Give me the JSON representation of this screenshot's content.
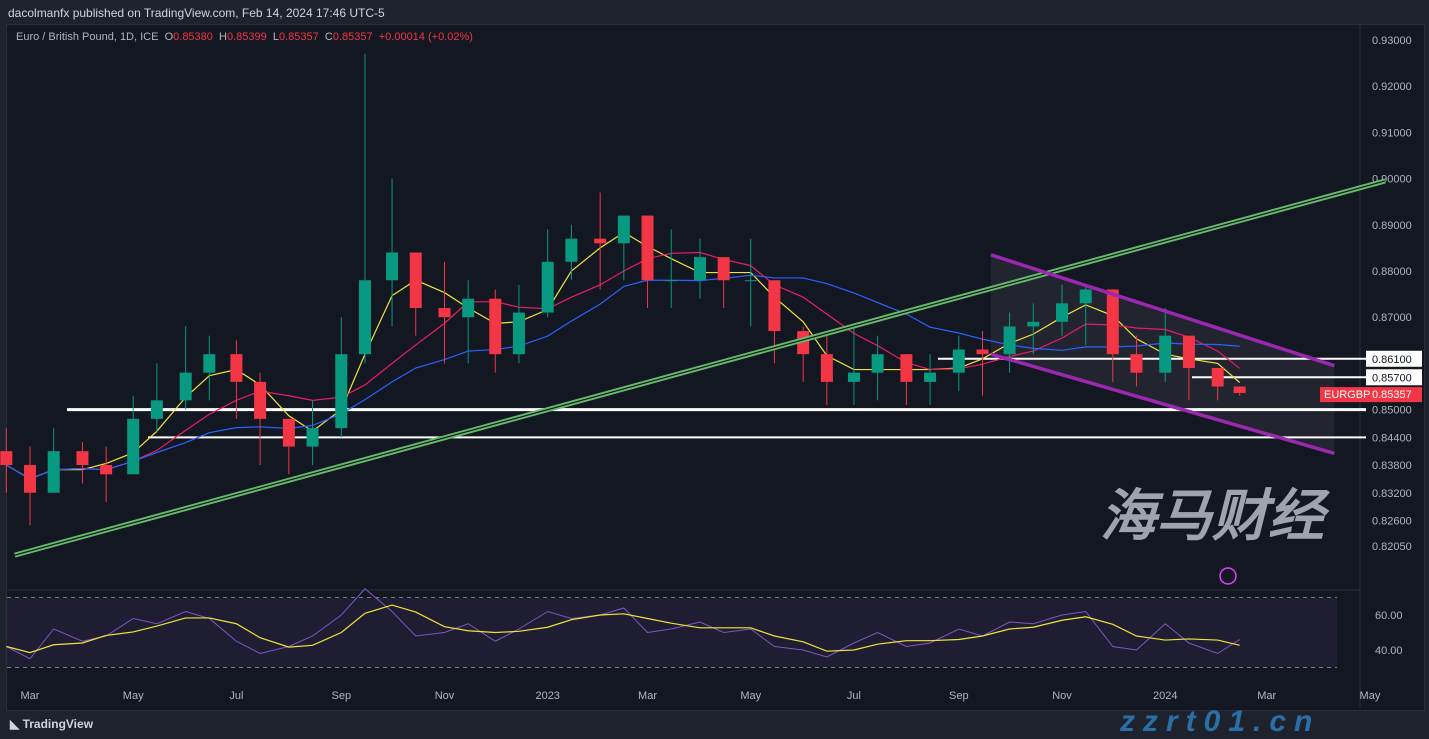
{
  "header": {
    "published": "dacolmanfx published on TradingView.com, Feb 14, 2024 17:46 UTC-5",
    "symbol": "Euro / British Pound, 1D, ICE",
    "o_label": "O",
    "o": "0.85380",
    "h_label": "H",
    "h": "0.85399",
    "l_label": "L",
    "l": "0.85357",
    "c_label": "C",
    "c": "0.85357",
    "change": "+0.00014 (+0.02%)"
  },
  "footer": {
    "brand": "TradingView"
  },
  "watermark": {
    "cn": "海马财经",
    "url": "zzrt01.cn"
  },
  "chart_data": {
    "type": "candlestick",
    "symbol_tag": "EURGBP",
    "last_price": "0.85357",
    "colors": {
      "up": "#089981",
      "down": "#f23645",
      "ma_fast": "#f2e33c",
      "ma_mid": "#e91e63",
      "ma_slow": "#2962ff",
      "trend": "#66bb6a",
      "channel": "#9c27b0",
      "rsi": "#7e57c2"
    },
    "ylim": [
      0.82,
      0.93
    ],
    "y_ticks": [
      "0.93000",
      "0.92000",
      "0.91000",
      "0.90000",
      "0.89000",
      "0.88000",
      "0.87000",
      "0.85000",
      "0.84400",
      "0.83800",
      "0.83200",
      "0.82600",
      "0.82050"
    ],
    "x_ticks": [
      [
        "Mar",
        "2022-03-01"
      ],
      [
        "May",
        "2022-05-01"
      ],
      [
        "Jul",
        "2022-07-01"
      ],
      [
        "Sep",
        "2022-09-01"
      ],
      [
        "Nov",
        "2022-11-01"
      ],
      [
        "2023",
        "2023-01-01"
      ],
      [
        "Mar",
        "2023-03-01"
      ],
      [
        "May",
        "2023-05-01"
      ],
      [
        "Jul",
        "2023-07-01"
      ],
      [
        "Sep",
        "2023-09-01"
      ],
      [
        "Nov",
        "2023-11-01"
      ],
      [
        "2024",
        "2024-01-01"
      ],
      [
        "Mar",
        "2024-03-01"
      ],
      [
        "May",
        "2024-05-01"
      ]
    ],
    "dates": [
      "2022-02-15",
      "2022-03-01",
      "2022-03-15",
      "2022-04-01",
      "2022-04-15",
      "2022-05-01",
      "2022-05-15",
      "2022-06-01",
      "2022-06-15",
      "2022-07-01",
      "2022-07-15",
      "2022-08-01",
      "2022-08-15",
      "2022-09-01",
      "2022-09-15",
      "2022-10-01",
      "2022-10-15",
      "2022-11-01",
      "2022-11-15",
      "2022-12-01",
      "2022-12-15",
      "2023-01-01",
      "2023-01-15",
      "2023-02-01",
      "2023-02-15",
      "2023-03-01",
      "2023-03-15",
      "2023-04-01",
      "2023-04-15",
      "2023-05-01",
      "2023-05-15",
      "2023-06-01",
      "2023-06-15",
      "2023-07-01",
      "2023-07-15",
      "2023-08-01",
      "2023-08-15",
      "2023-09-01",
      "2023-09-15",
      "2023-10-01",
      "2023-10-15",
      "2023-11-01",
      "2023-11-15",
      "2023-12-01",
      "2023-12-15",
      "2024-01-01",
      "2024-01-15",
      "2024-02-01",
      "2024-02-14"
    ],
    "close": [
      0.838,
      0.832,
      0.841,
      0.838,
      0.836,
      0.848,
      0.852,
      0.858,
      0.862,
      0.856,
      0.848,
      0.842,
      0.846,
      0.862,
      0.878,
      0.884,
      0.872,
      0.87,
      0.874,
      0.862,
      0.871,
      0.882,
      0.887,
      0.886,
      0.892,
      0.878,
      0.878,
      0.883,
      0.878,
      0.878,
      0.867,
      0.862,
      0.856,
      0.858,
      0.862,
      0.856,
      0.858,
      0.863,
      0.862,
      0.868,
      0.869,
      0.873,
      0.876,
      0.862,
      0.858,
      0.866,
      0.859,
      0.855,
      0.8536
    ],
    "high": [
      0.846,
      0.842,
      0.846,
      0.843,
      0.842,
      0.853,
      0.86,
      0.868,
      0.866,
      0.865,
      0.858,
      0.848,
      0.852,
      0.87,
      0.927,
      0.9,
      0.884,
      0.882,
      0.878,
      0.876,
      0.877,
      0.889,
      0.89,
      0.897,
      0.892,
      0.89,
      0.889,
      0.887,
      0.883,
      0.887,
      0.872,
      0.868,
      0.866,
      0.868,
      0.866,
      0.862,
      0.862,
      0.866,
      0.867,
      0.871,
      0.873,
      0.877,
      0.877,
      0.87,
      0.866,
      0.872,
      0.864,
      0.858,
      0.854
    ],
    "low": [
      0.832,
      0.825,
      0.832,
      0.834,
      0.83,
      0.836,
      0.845,
      0.85,
      0.852,
      0.848,
      0.838,
      0.836,
      0.838,
      0.844,
      0.86,
      0.868,
      0.866,
      0.86,
      0.86,
      0.858,
      0.86,
      0.87,
      0.878,
      0.876,
      0.878,
      0.872,
      0.872,
      0.874,
      0.872,
      0.868,
      0.86,
      0.856,
      0.851,
      0.851,
      0.852,
      0.851,
      0.851,
      0.854,
      0.853,
      0.858,
      0.862,
      0.866,
      0.864,
      0.856,
      0.855,
      0.856,
      0.852,
      0.852,
      0.853
    ],
    "rsi": [
      42,
      35,
      52,
      45,
      48,
      58,
      55,
      62,
      58,
      45,
      38,
      42,
      48,
      60,
      75,
      62,
      48,
      50,
      55,
      45,
      52,
      62,
      58,
      60,
      64,
      50,
      52,
      56,
      50,
      52,
      42,
      40,
      36,
      44,
      50,
      42,
      44,
      52,
      48,
      56,
      55,
      60,
      62,
      42,
      40,
      55,
      44,
      38,
      46
    ],
    "rsi_ticks": [
      "60.00",
      "40.00"
    ],
    "levels": [
      0.861,
      0.857,
      0.85,
      0.844
    ],
    "level_labels": [
      "0.86100",
      "0.85700"
    ],
    "trendline": [
      [
        "2022-02-20",
        0.8185
      ],
      [
        "2024-05-10",
        0.8995
      ]
    ],
    "channel_upper": [
      [
        "2023-09-20",
        0.8835
      ],
      [
        "2024-04-10",
        0.8595
      ]
    ],
    "channel_lower": [
      [
        "2023-09-20",
        0.862
      ],
      [
        "2024-04-10",
        0.8405
      ]
    ]
  }
}
